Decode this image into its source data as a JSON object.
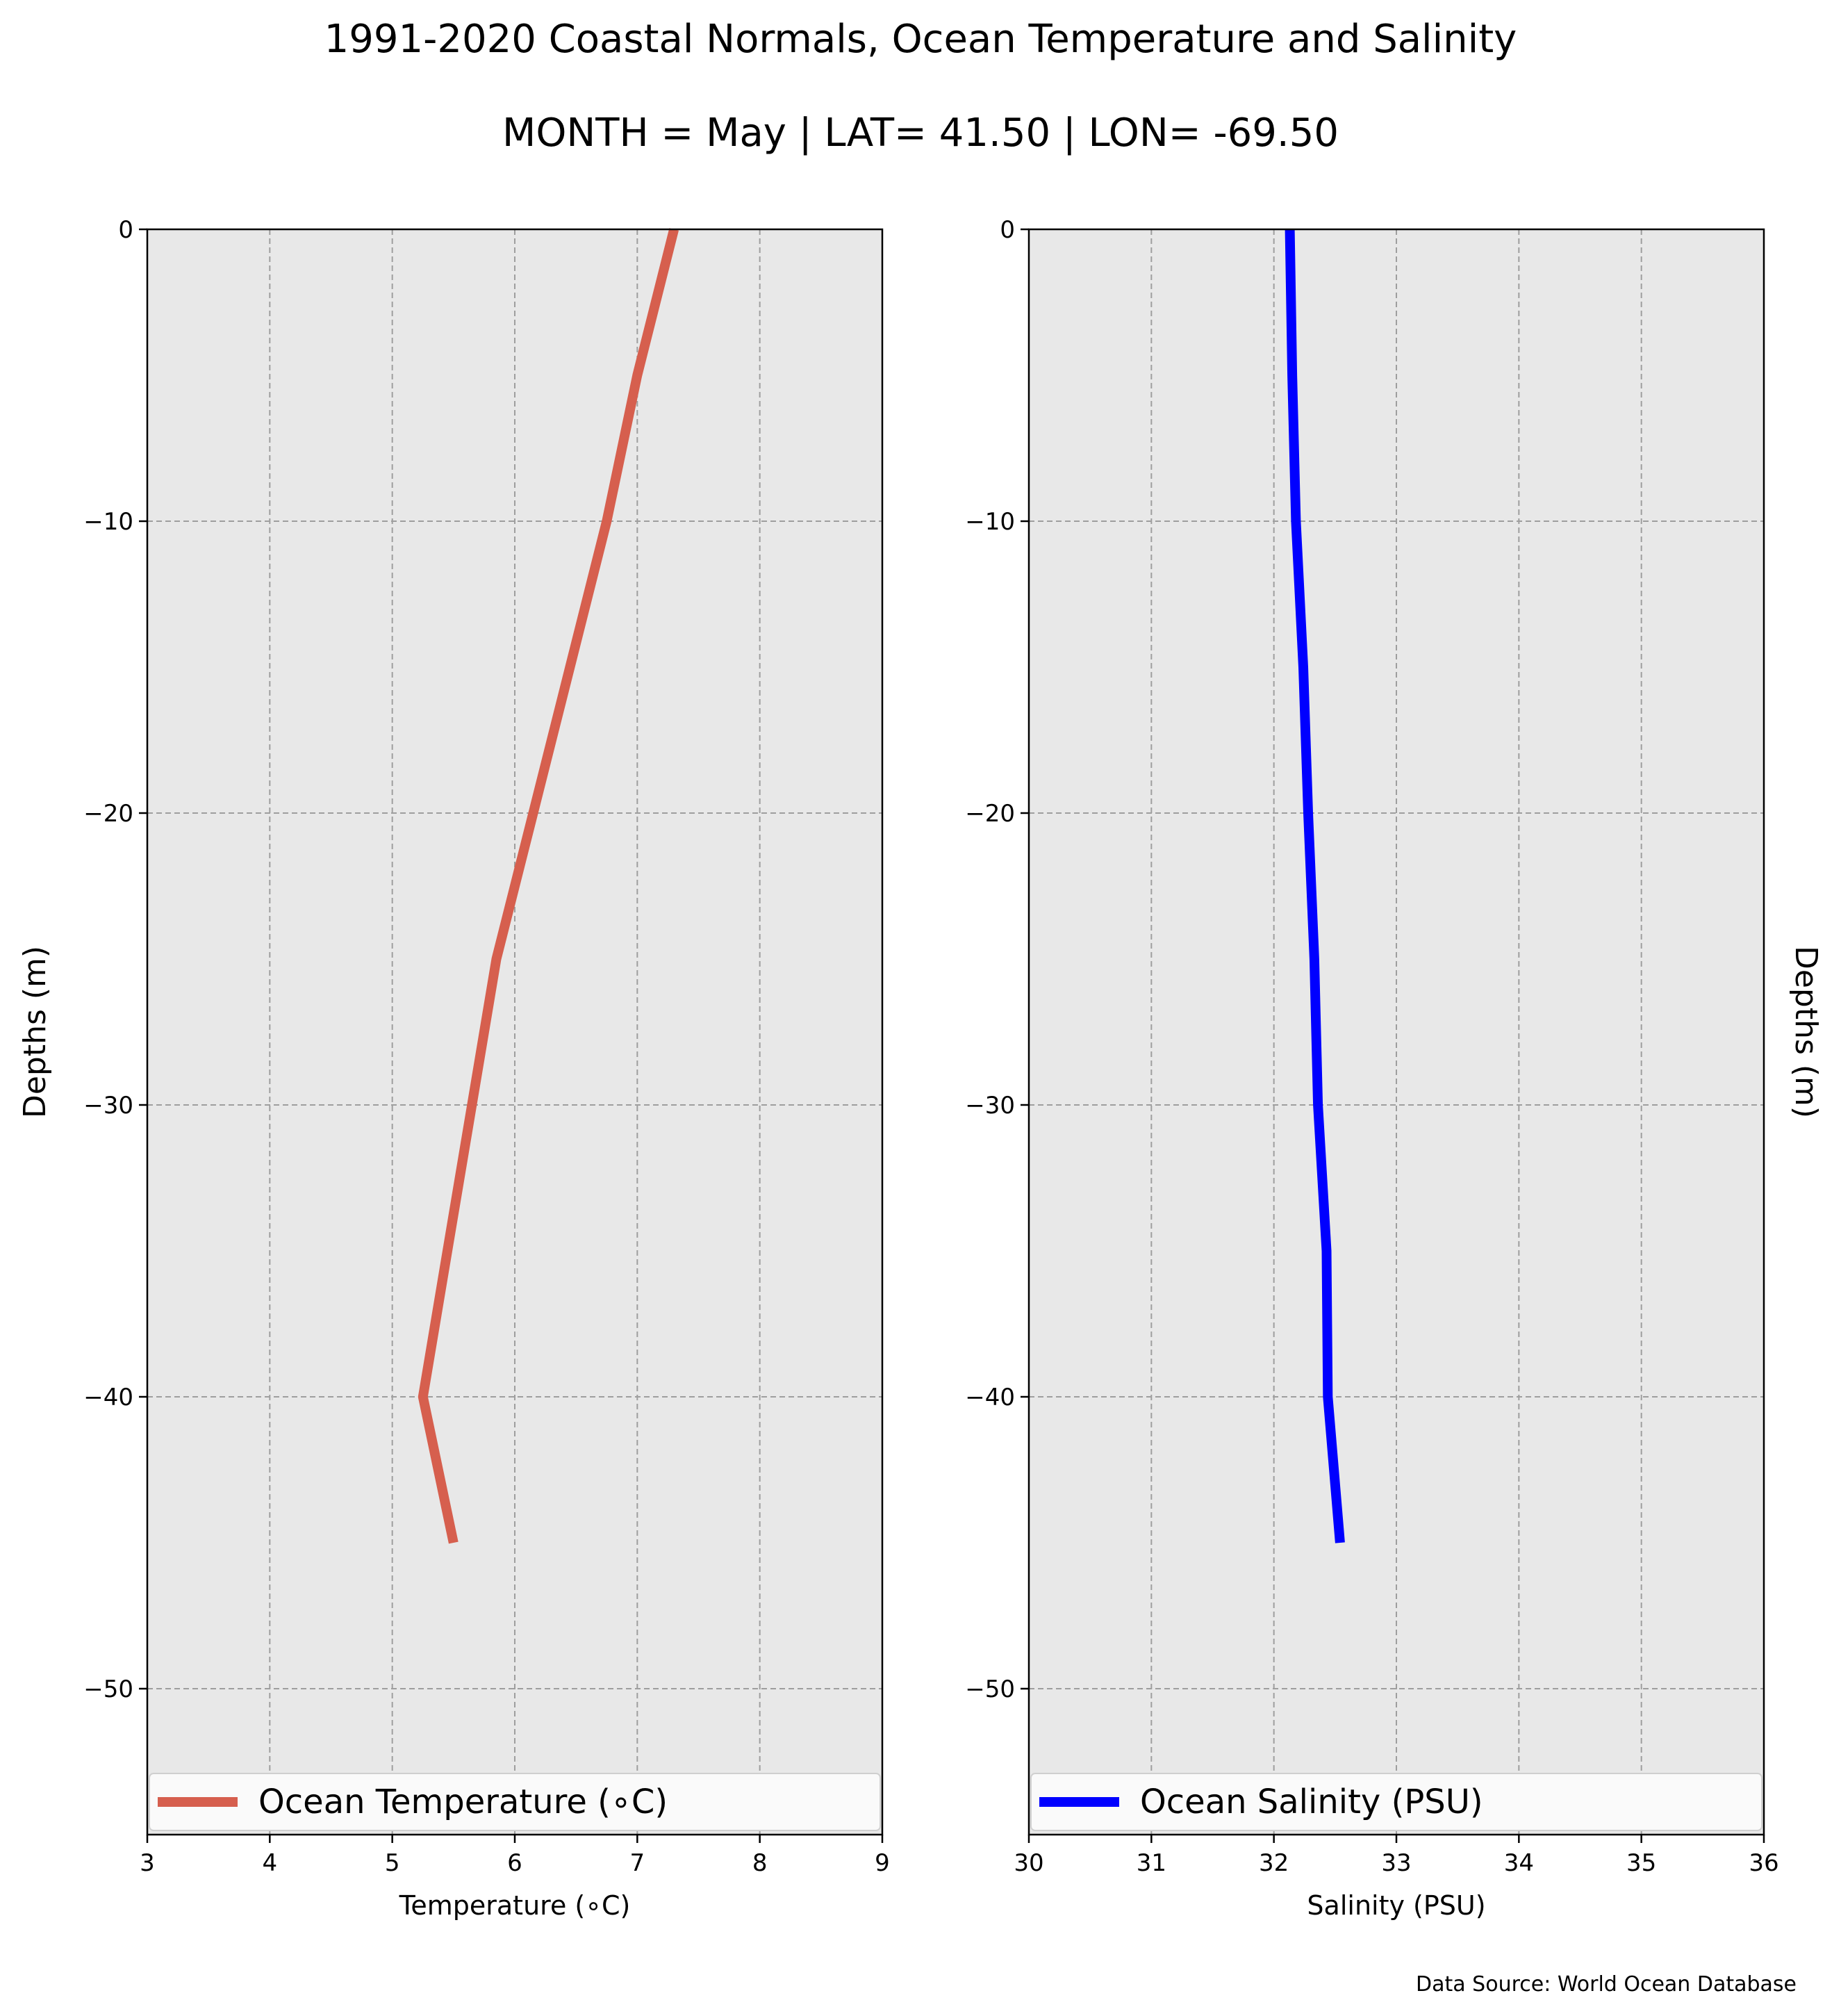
{
  "figure": {
    "title_line1": "1991-2020 Coastal Normals, Ocean Temperature and Salinity",
    "title_line2": "MONTH = May | LAT= 41.50 | LON= -69.50",
    "source_note": "Data Source: World Ocean Database",
    "background": "#ffffff",
    "panel_background": "#e8e8e8"
  },
  "chart_data": [
    {
      "type": "line",
      "xlabel": "Temperature (∘C)",
      "ylabel": "Depths (m)",
      "ylabel_side": "left",
      "xlim": [
        3,
        9
      ],
      "ylim": [
        -55,
        0
      ],
      "xticks": [
        3,
        4,
        5,
        6,
        7,
        8,
        9
      ],
      "yticks": [
        0,
        -10,
        -20,
        -30,
        -40,
        -50
      ],
      "ytick_labels": [
        "0",
        "−10",
        "−20",
        "−30",
        "−40",
        "−50"
      ],
      "grid": true,
      "grid_style": "dashed",
      "legend_position": "lower",
      "series": [
        {
          "name": "Ocean Temperature (∘C)",
          "color": "#d65f4e",
          "x": [
            7.3,
            7.0,
            6.75,
            6.45,
            6.15,
            5.85,
            5.65,
            5.45,
            5.25,
            5.5
          ],
          "y": [
            0,
            -5,
            -10,
            -15,
            -20,
            -25,
            -30,
            -35,
            -40,
            -45
          ]
        }
      ]
    },
    {
      "type": "line",
      "xlabel": "Salinity (PSU)",
      "ylabel": "Depths (m)",
      "ylabel_side": "right",
      "xlim": [
        30,
        36
      ],
      "ylim": [
        -55,
        0
      ],
      "xticks": [
        30,
        31,
        32,
        33,
        34,
        35,
        36
      ],
      "yticks": [
        0,
        -10,
        -20,
        -30,
        -40,
        -50
      ],
      "ytick_labels": [
        "0",
        "−10",
        "−20",
        "−30",
        "−40",
        "−50"
      ],
      "grid": true,
      "grid_style": "dashed",
      "legend_position": "lower",
      "series": [
        {
          "name": "Ocean Salinity (PSU)",
          "color": "#0000ff",
          "x": [
            32.13,
            32.15,
            32.18,
            32.24,
            32.28,
            32.33,
            32.36,
            32.43,
            32.44,
            32.54
          ],
          "y": [
            0,
            -5,
            -10,
            -15,
            -20,
            -25,
            -30,
            -35,
            -40,
            -45
          ]
        }
      ]
    }
  ]
}
